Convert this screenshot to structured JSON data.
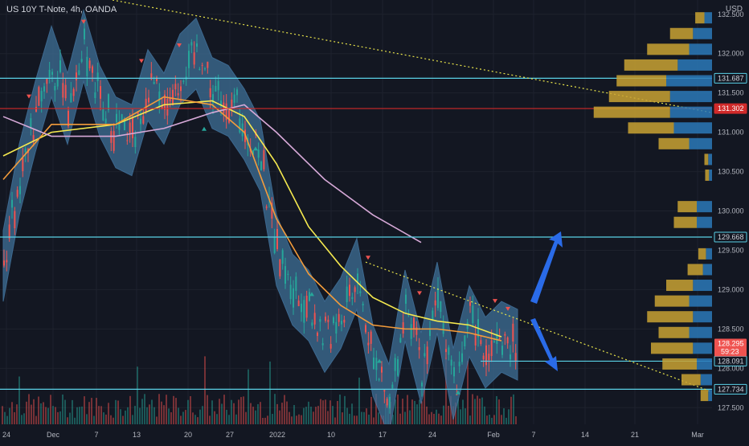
{
  "header": {
    "title": "US 10Y T-Note, 4h, OANDA",
    "unit": "USD"
  },
  "colors": {
    "background": "#131722",
    "grid": "#1e222d",
    "band_fill": "#3e6f96",
    "band_edge": "#4a84b4",
    "candle_up": "#26a69a",
    "candle_down": "#ef5350",
    "ma_yellow": "#f5e94f",
    "ma_orange": "#f39c3b",
    "ma_violet": "#d7a9d8",
    "support_line": "#5ad1e6",
    "resistance_line": "#d02a2a",
    "trend_line": "#e8e34a",
    "arrow_blue": "#2a6be8",
    "vp_gold": "#c9a233",
    "vp_blue": "#2c79b9"
  },
  "chart_data": {
    "type": "line",
    "title": "US 10Y T-Note, 4h, OANDA",
    "ylabel": "USD",
    "ylim": [
      127.37,
      132.6
    ],
    "x_ticks": [
      "24",
      "Dec",
      "7",
      "13",
      "20",
      "27",
      "2022",
      "10",
      "17",
      "24",
      "Feb",
      "7",
      "14",
      "21",
      "Mar"
    ],
    "y_ticks": [
      "132.500",
      "132.000",
      "131.500",
      "131.000",
      "130.500",
      "130.000",
      "129.500",
      "129.000",
      "128.500",
      "128.000",
      "127.500"
    ],
    "horizontal_levels": [
      {
        "label": "131.687",
        "value": 131.687,
        "kind": "support"
      },
      {
        "label": "131.302",
        "value": 131.302,
        "kind": "resistance"
      },
      {
        "label": "129.668",
        "value": 129.668,
        "kind": "support"
      },
      {
        "label": "128.091",
        "value": 128.091,
        "kind": "support"
      },
      {
        "label": "127.734",
        "value": 127.734,
        "kind": "support"
      }
    ],
    "last_price": {
      "label": "128.295",
      "countdown": "59:23",
      "value": 128.295
    },
    "price_path": [
      [
        0,
        129.3
      ],
      [
        2,
        130.4
      ],
      [
        4,
        131.2
      ],
      [
        6,
        131.9
      ],
      [
        8,
        131.3
      ],
      [
        10,
        132.1
      ],
      [
        12,
        131.4
      ],
      [
        14,
        131.0
      ],
      [
        16,
        130.9
      ],
      [
        18,
        131.6
      ],
      [
        20,
        131.3
      ],
      [
        22,
        131.8
      ],
      [
        24,
        132.0
      ],
      [
        26,
        131.5
      ],
      [
        28,
        131.4
      ],
      [
        30,
        131.1
      ],
      [
        32,
        130.7
      ],
      [
        34,
        129.5
      ],
      [
        36,
        129.0
      ],
      [
        38,
        128.8
      ],
      [
        40,
        128.4
      ],
      [
        42,
        128.7
      ],
      [
        44,
        129.2
      ],
      [
        46,
        128.1
      ],
      [
        48,
        127.6
      ],
      [
        50,
        128.8
      ],
      [
        52,
        128.0
      ],
      [
        54,
        128.9
      ],
      [
        56,
        127.8
      ],
      [
        58,
        128.6
      ],
      [
        60,
        128.2
      ],
      [
        62,
        128.4
      ],
      [
        64,
        128.3
      ]
    ],
    "series": [
      {
        "values": [
          [
            0,
            130.7
          ],
          [
            6,
            131.0
          ],
          [
            14,
            131.1
          ],
          [
            20,
            131.35
          ],
          [
            26,
            131.4
          ],
          [
            30,
            131.2
          ],
          [
            34,
            130.6
          ],
          [
            38,
            129.8
          ],
          [
            42,
            129.3
          ],
          [
            46,
            128.9
          ],
          [
            50,
            128.7
          ],
          [
            54,
            128.6
          ],
          [
            58,
            128.55
          ],
          [
            62,
            128.4
          ]
        ]
      },
      {
        "values": [
          [
            0,
            130.4
          ],
          [
            6,
            131.1
          ],
          [
            14,
            131.1
          ],
          [
            20,
            131.45
          ],
          [
            26,
            131.35
          ],
          [
            30,
            131.0
          ],
          [
            34,
            129.9
          ],
          [
            38,
            129.2
          ],
          [
            42,
            128.8
          ],
          [
            46,
            128.55
          ],
          [
            50,
            128.5
          ],
          [
            54,
            128.5
          ],
          [
            58,
            128.45
          ],
          [
            62,
            128.35
          ]
        ]
      },
      {
        "values": [
          [
            0,
            131.2
          ],
          [
            6,
            130.95
          ],
          [
            14,
            130.95
          ],
          [
            20,
            131.05
          ],
          [
            26,
            131.25
          ],
          [
            30,
            131.35
          ],
          [
            34,
            131.0
          ],
          [
            40,
            130.4
          ],
          [
            46,
            129.95
          ],
          [
            52,
            129.6
          ]
        ]
      }
    ],
    "volume_profile": [
      {
        "price": 132.45,
        "gold": 0.12,
        "blue": 0.1
      },
      {
        "price": 132.25,
        "gold": 0.3,
        "blue": 0.25
      },
      {
        "price": 132.05,
        "gold": 0.55,
        "blue": 0.3
      },
      {
        "price": 131.85,
        "gold": 0.7,
        "blue": 0.45
      },
      {
        "price": 131.65,
        "gold": 0.65,
        "blue": 0.6
      },
      {
        "price": 131.45,
        "gold": 0.8,
        "blue": 0.55
      },
      {
        "price": 131.25,
        "gold": 1.0,
        "blue": 0.55
      },
      {
        "price": 131.05,
        "gold": 0.6,
        "blue": 0.5
      },
      {
        "price": 130.85,
        "gold": 0.4,
        "blue": 0.3
      },
      {
        "price": 130.65,
        "gold": 0.05,
        "blue": 0.05
      },
      {
        "price": 130.45,
        "gold": 0.05,
        "blue": 0.04
      },
      {
        "price": 130.05,
        "gold": 0.25,
        "blue": 0.2
      },
      {
        "price": 129.85,
        "gold": 0.3,
        "blue": 0.2
      },
      {
        "price": 129.45,
        "gold": 0.1,
        "blue": 0.08
      },
      {
        "price": 129.25,
        "gold": 0.2,
        "blue": 0.12
      },
      {
        "price": 129.05,
        "gold": 0.35,
        "blue": 0.25
      },
      {
        "price": 128.85,
        "gold": 0.45,
        "blue": 0.3
      },
      {
        "price": 128.65,
        "gold": 0.6,
        "blue": 0.25
      },
      {
        "price": 128.45,
        "gold": 0.4,
        "blue": 0.3
      },
      {
        "price": 128.25,
        "gold": 0.55,
        "blue": 0.25
      },
      {
        "price": 128.05,
        "gold": 0.45,
        "blue": 0.2
      },
      {
        "price": 127.85,
        "gold": 0.25,
        "blue": 0.15
      },
      {
        "price": 127.65,
        "gold": 0.1,
        "blue": 0.05
      }
    ]
  }
}
